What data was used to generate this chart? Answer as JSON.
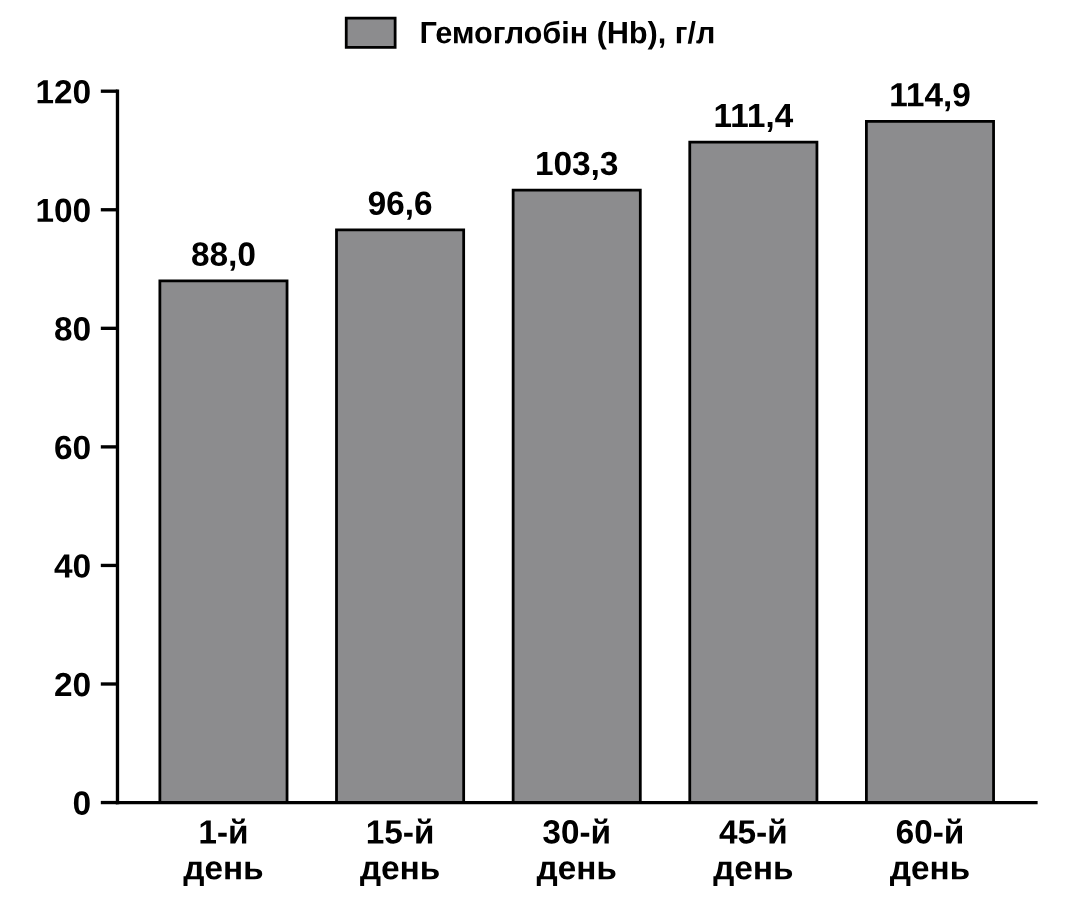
{
  "chart_data": {
    "type": "bar",
    "categories": [
      "1-й\nдень",
      "15-й\nдень",
      "30-й\nдень",
      "45-й\nдень",
      "60-й\nдень"
    ],
    "series": [
      {
        "name": "Гемоглобін (Hb), г/л",
        "color": "#8c8c8e",
        "values": [
          88.0,
          96.6,
          103.3,
          111.4,
          114.9
        ],
        "value_labels": [
          "88,0",
          "96,6",
          "103,3",
          "111,4",
          "114,9"
        ]
      }
    ],
    "ylim": [
      0,
      120
    ],
    "yticks": [
      0,
      20,
      40,
      60,
      80,
      100,
      120
    ],
    "grid": false,
    "legend": "top"
  }
}
